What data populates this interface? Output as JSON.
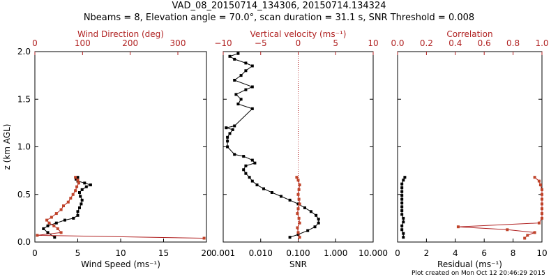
{
  "title": {
    "line1": "VAD_08_20150714_134306, 20150714.134324",
    "line2": "Nbeams = 8, Elevation angle = 70.0°, scan duration = 31.1 s, SNR Threshold = 0.008"
  },
  "credit": "Plot created on Mon Oct 12 20:46:29 2015",
  "colors": {
    "black": "#000000",
    "red": "#b02020",
    "dot": "#c0442a"
  },
  "chart_data": [
    {
      "type": "line",
      "ylabel": "z (km AGL)",
      "ylim": [
        0,
        2
      ],
      "yticks": [
        "0.0",
        "0.5",
        "1.0",
        "1.5",
        "2.0"
      ],
      "bottom_axis": {
        "label": "Wind Speed (ms⁻¹)",
        "lim": [
          0,
          20
        ],
        "ticks": [
          "0",
          "5",
          "10",
          "15",
          "20"
        ]
      },
      "top_axis": {
        "label": "Wind Direction (deg)",
        "lim": [
          0,
          360
        ],
        "ticks": [
          "0",
          "100",
          "200",
          "300"
        ]
      },
      "series": [
        {
          "axis": "bottom",
          "points": [
            [
              2.3,
              0.05
            ],
            [
              1.5,
              0.1
            ],
            [
              1.0,
              0.14
            ],
            [
              1.5,
              0.17
            ],
            [
              2.5,
              0.2
            ],
            [
              3.5,
              0.23
            ],
            [
              4.5,
              0.25
            ],
            [
              5.0,
              0.28
            ],
            [
              5.0,
              0.32
            ],
            [
              5.2,
              0.36
            ],
            [
              5.4,
              0.4
            ],
            [
              5.5,
              0.44
            ],
            [
              5.3,
              0.48
            ],
            [
              5.2,
              0.52
            ],
            [
              5.5,
              0.55
            ],
            [
              6.0,
              0.58
            ],
            [
              6.5,
              0.6
            ],
            [
              5.8,
              0.62
            ],
            [
              5.0,
              0.64
            ],
            [
              4.8,
              0.66
            ],
            [
              5.0,
              0.68
            ]
          ]
        },
        {
          "axis": "top",
          "points": [
            [
              355,
              0.04
            ],
            [
              5,
              0.07
            ],
            [
              55,
              0.1
            ],
            [
              48,
              0.14
            ],
            [
              40,
              0.17
            ],
            [
              30,
              0.2
            ],
            [
              25,
              0.23
            ],
            [
              35,
              0.26
            ],
            [
              45,
              0.3
            ],
            [
              55,
              0.34
            ],
            [
              60,
              0.38
            ],
            [
              70,
              0.42
            ],
            [
              75,
              0.46
            ],
            [
              80,
              0.5
            ],
            [
              85,
              0.54
            ],
            [
              88,
              0.58
            ],
            [
              92,
              0.62
            ],
            [
              90,
              0.65
            ],
            [
              85,
              0.68
            ]
          ]
        }
      ]
    },
    {
      "type": "scatter",
      "bottom_axis": {
        "label": "SNR",
        "scale": "log",
        "lim": [
          0.001,
          10
        ],
        "ticks": [
          "0.001",
          "0.010",
          "0.100",
          "1.000",
          "10.000"
        ]
      },
      "top_axis": {
        "label": "Vertical velocity (ms⁻¹)",
        "lim": [
          -10,
          10
        ],
        "ticks": [
          "−10",
          "−5",
          "0",
          "5",
          "10"
        ],
        "reference_line": 0
      },
      "series": [
        {
          "axis": "bottom",
          "points": [
            [
              0.06,
              0.05
            ],
            [
              0.1,
              0.08
            ],
            [
              0.18,
              0.12
            ],
            [
              0.28,
              0.16
            ],
            [
              0.35,
              0.2
            ],
            [
              0.35,
              0.24
            ],
            [
              0.3,
              0.28
            ],
            [
              0.22,
              0.32
            ],
            [
              0.15,
              0.36
            ],
            [
              0.1,
              0.4
            ],
            [
              0.06,
              0.44
            ],
            [
              0.035,
              0.48
            ],
            [
              0.02,
              0.52
            ],
            [
              0.012,
              0.56
            ],
            [
              0.008,
              0.6
            ],
            [
              0.006,
              0.64
            ],
            [
              0.005,
              0.68
            ],
            [
              0.004,
              0.72
            ],
            [
              0.0035,
              0.76
            ],
            [
              0.004,
              0.8
            ],
            [
              0.007,
              0.83
            ],
            [
              0.006,
              0.86
            ],
            [
              0.0035,
              0.9
            ],
            [
              0.002,
              0.92
            ],
            [
              0.0013,
              1.0
            ],
            [
              0.0013,
              1.06
            ],
            [
              0.0013,
              1.1
            ],
            [
              0.0015,
              1.14
            ],
            [
              0.0018,
              1.18
            ],
            [
              0.0012,
              1.2
            ],
            [
              0.002,
              1.22
            ],
            [
              0.006,
              1.4
            ],
            [
              0.0025,
              1.45
            ],
            [
              0.003,
              1.5
            ],
            [
              0.0022,
              1.55
            ],
            [
              0.004,
              1.6
            ],
            [
              0.006,
              1.63
            ],
            [
              0.002,
              1.7
            ],
            [
              0.003,
              1.75
            ],
            [
              0.004,
              1.8
            ],
            [
              0.006,
              1.85
            ],
            [
              0.004,
              1.88
            ],
            [
              0.002,
              1.92
            ],
            [
              0.0015,
              1.95
            ],
            [
              0.0025,
              1.98
            ]
          ]
        },
        {
          "axis": "top",
          "points": [
            [
              0.2,
              0.05
            ],
            [
              0.0,
              0.1
            ],
            [
              -0.1,
              0.15
            ],
            [
              0.2,
              0.2
            ],
            [
              0.1,
              0.25
            ],
            [
              -0.1,
              0.3
            ],
            [
              0.0,
              0.35
            ],
            [
              0.2,
              0.4
            ],
            [
              0.1,
              0.45
            ],
            [
              0.0,
              0.5
            ],
            [
              0.1,
              0.55
            ],
            [
              0.2,
              0.6
            ],
            [
              0.0,
              0.65
            ],
            [
              -0.2,
              0.68
            ]
          ]
        }
      ]
    },
    {
      "type": "line",
      "bottom_axis": {
        "label": "Residual (ms⁻¹)",
        "lim": [
          0,
          10
        ],
        "ticks": [
          "0",
          "2",
          "4",
          "6",
          "8",
          "10"
        ]
      },
      "top_axis": {
        "label": "Correlation",
        "lim": [
          0,
          1
        ],
        "ticks": [
          "0.0",
          "0.2",
          "0.4",
          "0.6",
          "0.8",
          "1.0"
        ]
      },
      "series": [
        {
          "axis": "bottom",
          "points": [
            [
              0.4,
              0.05
            ],
            [
              0.4,
              0.09
            ],
            [
              0.3,
              0.13
            ],
            [
              0.3,
              0.17
            ],
            [
              0.4,
              0.21
            ],
            [
              0.4,
              0.25
            ],
            [
              0.3,
              0.29
            ],
            [
              0.3,
              0.33
            ],
            [
              0.3,
              0.37
            ],
            [
              0.3,
              0.41
            ],
            [
              0.3,
              0.45
            ],
            [
              0.3,
              0.49
            ],
            [
              0.3,
              0.53
            ],
            [
              0.3,
              0.57
            ],
            [
              0.3,
              0.61
            ],
            [
              0.4,
              0.65
            ],
            [
              0.5,
              0.68
            ]
          ]
        },
        {
          "axis": "top",
          "points": [
            [
              0.88,
              0.04
            ],
            [
              0.9,
              0.07
            ],
            [
              0.95,
              0.1
            ],
            [
              0.76,
              0.13
            ],
            [
              0.42,
              0.16
            ],
            [
              0.98,
              0.2
            ],
            [
              1.0,
              0.25
            ],
            [
              1.0,
              0.3
            ],
            [
              1.0,
              0.35
            ],
            [
              1.0,
              0.4
            ],
            [
              1.0,
              0.45
            ],
            [
              1.0,
              0.5
            ],
            [
              1.0,
              0.55
            ],
            [
              0.99,
              0.6
            ],
            [
              0.98,
              0.64
            ],
            [
              0.95,
              0.68
            ]
          ]
        }
      ]
    }
  ]
}
